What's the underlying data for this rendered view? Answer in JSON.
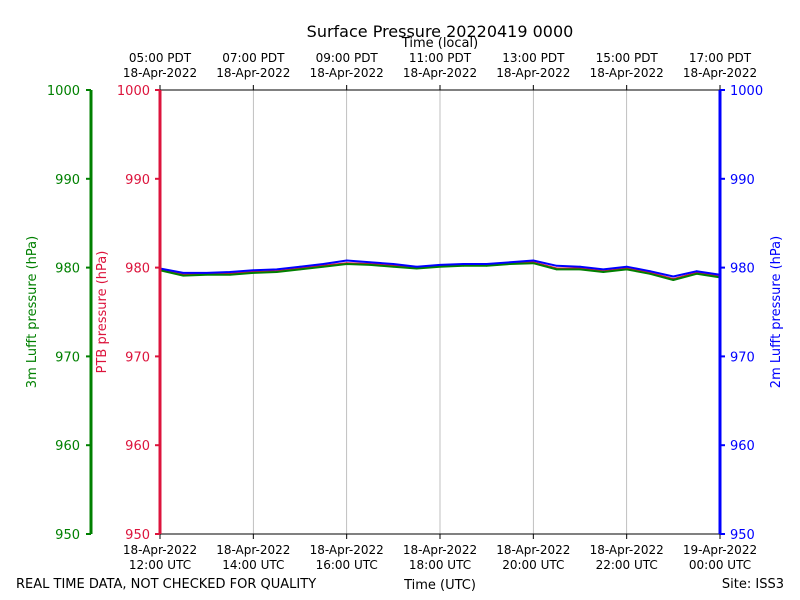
{
  "chart_data": {
    "type": "line",
    "title": "Surface Pressure 20220419 0000",
    "top_xlabel": "Time (local)",
    "xlabel": "Time (UTC)",
    "xlim": [
      "2022-04-18 12:00 UTC",
      "2022-04-19 00:00 UTC"
    ],
    "grid": "vertical",
    "top_ticks": [
      {
        "time": "05:00 PDT",
        "date": "18-Apr-2022"
      },
      {
        "time": "07:00 PDT",
        "date": "18-Apr-2022"
      },
      {
        "time": "09:00 PDT",
        "date": "18-Apr-2022"
      },
      {
        "time": "11:00 PDT",
        "date": "18-Apr-2022"
      },
      {
        "time": "13:00 PDT",
        "date": "18-Apr-2022"
      },
      {
        "time": "15:00 PDT",
        "date": "18-Apr-2022"
      },
      {
        "time": "17:00 PDT",
        "date": "18-Apr-2022"
      }
    ],
    "bottom_ticks": [
      {
        "date": "18-Apr-2022",
        "time": "12:00 UTC"
      },
      {
        "date": "18-Apr-2022",
        "time": "14:00 UTC"
      },
      {
        "date": "18-Apr-2022",
        "time": "16:00 UTC"
      },
      {
        "date": "18-Apr-2022",
        "time": "18:00 UTC"
      },
      {
        "date": "18-Apr-2022",
        "time": "20:00 UTC"
      },
      {
        "date": "18-Apr-2022",
        "time": "22:00 UTC"
      },
      {
        "date": "19-Apr-2022",
        "time": "00:00 UTC"
      }
    ],
    "axes": [
      {
        "id": "lufft3m",
        "label": "3m Lufft pressure (hPa)",
        "color": "#008000",
        "ylim": [
          950,
          1000
        ],
        "ticks": [
          "950",
          "960",
          "970",
          "980",
          "990",
          "1000"
        ]
      },
      {
        "id": "ptb",
        "label": "PTB pressure (hPa)",
        "color": "#dc143c",
        "ylim": [
          950,
          1000
        ],
        "ticks": [
          "950",
          "960",
          "970",
          "980",
          "990",
          "1000"
        ]
      },
      {
        "id": "lufft2m",
        "label": "2m Lufft pressure (hPa)",
        "color": "#0000ff",
        "ylim": [
          950,
          1000
        ],
        "ticks": [
          "950",
          "960",
          "970",
          "980",
          "990",
          "1000"
        ]
      }
    ],
    "x_hours": [
      0,
      0.5,
      1,
      1.5,
      2,
      2.5,
      3,
      3.5,
      4,
      4.5,
      5,
      5.5,
      6,
      6.5,
      7,
      7.5,
      8,
      8.5,
      9,
      9.5,
      10,
      10.5,
      11,
      11.5,
      12
    ],
    "series": [
      {
        "name": "PTB",
        "axis": "ptb",
        "color": "#dc143c",
        "width": 2,
        "values": [
          979.8,
          979.2,
          979.3,
          979.3,
          979.5,
          979.6,
          979.9,
          980.2,
          980.5,
          980.4,
          980.2,
          980.0,
          980.2,
          980.3,
          980.3,
          980.5,
          980.6,
          979.9,
          979.9,
          979.6,
          979.9,
          979.4,
          978.7,
          979.4,
          979.0
        ]
      },
      {
        "name": "3m Lufft",
        "axis": "lufft3m",
        "color": "#008000",
        "width": 2,
        "values": [
          979.7,
          979.1,
          979.2,
          979.2,
          979.4,
          979.5,
          979.8,
          980.1,
          980.4,
          980.3,
          980.1,
          979.9,
          980.1,
          980.2,
          980.2,
          980.4,
          980.5,
          979.8,
          979.8,
          979.5,
          979.8,
          979.3,
          978.6,
          979.3,
          978.9
        ]
      },
      {
        "name": "2m Lufft",
        "axis": "lufft2m",
        "color": "#0000ff",
        "width": 2,
        "values": [
          979.9,
          979.4,
          979.4,
          979.5,
          979.7,
          979.8,
          980.1,
          980.4,
          980.8,
          980.6,
          980.4,
          980.1,
          980.3,
          980.4,
          980.4,
          980.6,
          980.8,
          980.2,
          980.1,
          979.8,
          980.1,
          979.6,
          979.0,
          979.6,
          979.2
        ]
      }
    ]
  },
  "footer": {
    "left": "REAL TIME DATA, NOT CHECKED FOR QUALITY",
    "right": "Site: ISS3"
  }
}
